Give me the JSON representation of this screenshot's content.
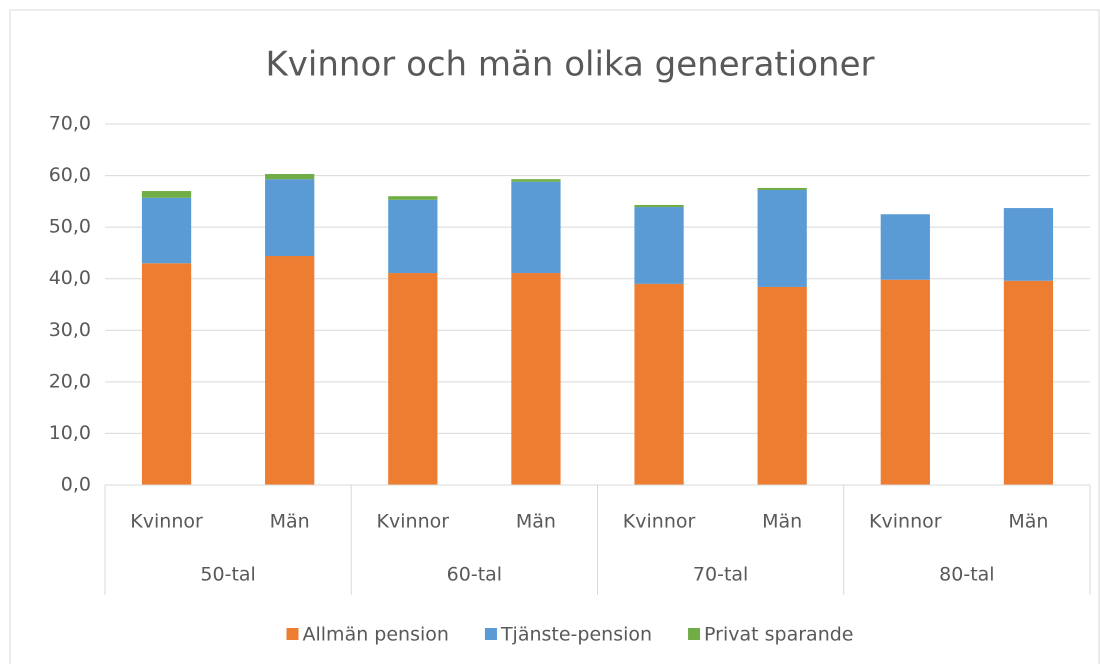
{
  "chart_data": {
    "type": "stacked_bar",
    "title": "Kvinnor och män olika generationer",
    "categories": [
      "Kvinnor",
      "Män",
      "Kvinnor",
      "Män",
      "Kvinnor",
      "Män",
      "Kvinnor",
      "Män"
    ],
    "groups": [
      "50-tal",
      "60-tal",
      "70-tal",
      "80-tal"
    ],
    "series": [
      {
        "name": "Allmän pension",
        "color": "#ed7d31",
        "values": [
          43.0,
          44.4,
          41.1,
          41.1,
          39.0,
          38.4,
          39.8,
          39.6
        ]
      },
      {
        "name": "Tjänste-pension",
        "color": "#5b9bd5",
        "values": [
          12.7,
          14.9,
          14.2,
          17.7,
          14.9,
          18.8,
          12.7,
          14.1
        ]
      },
      {
        "name": "Privat sparande",
        "color": "#70ad47",
        "values": [
          1.3,
          1.0,
          0.7,
          0.5,
          0.4,
          0.4,
          0.0,
          0.0
        ]
      }
    ],
    "ylim": [
      0,
      70
    ],
    "yticks": [
      {
        "value": 0,
        "label": "0,0"
      },
      {
        "value": 10,
        "label": "10,0"
      },
      {
        "value": 20,
        "label": "20,0"
      },
      {
        "value": 30,
        "label": "30,0"
      },
      {
        "value": 40,
        "label": "40,0"
      },
      {
        "value": 50,
        "label": "50,0"
      },
      {
        "value": 60,
        "label": "60,0"
      },
      {
        "value": 70,
        "label": "70,0"
      }
    ],
    "grid": true,
    "legend": "bottom"
  }
}
